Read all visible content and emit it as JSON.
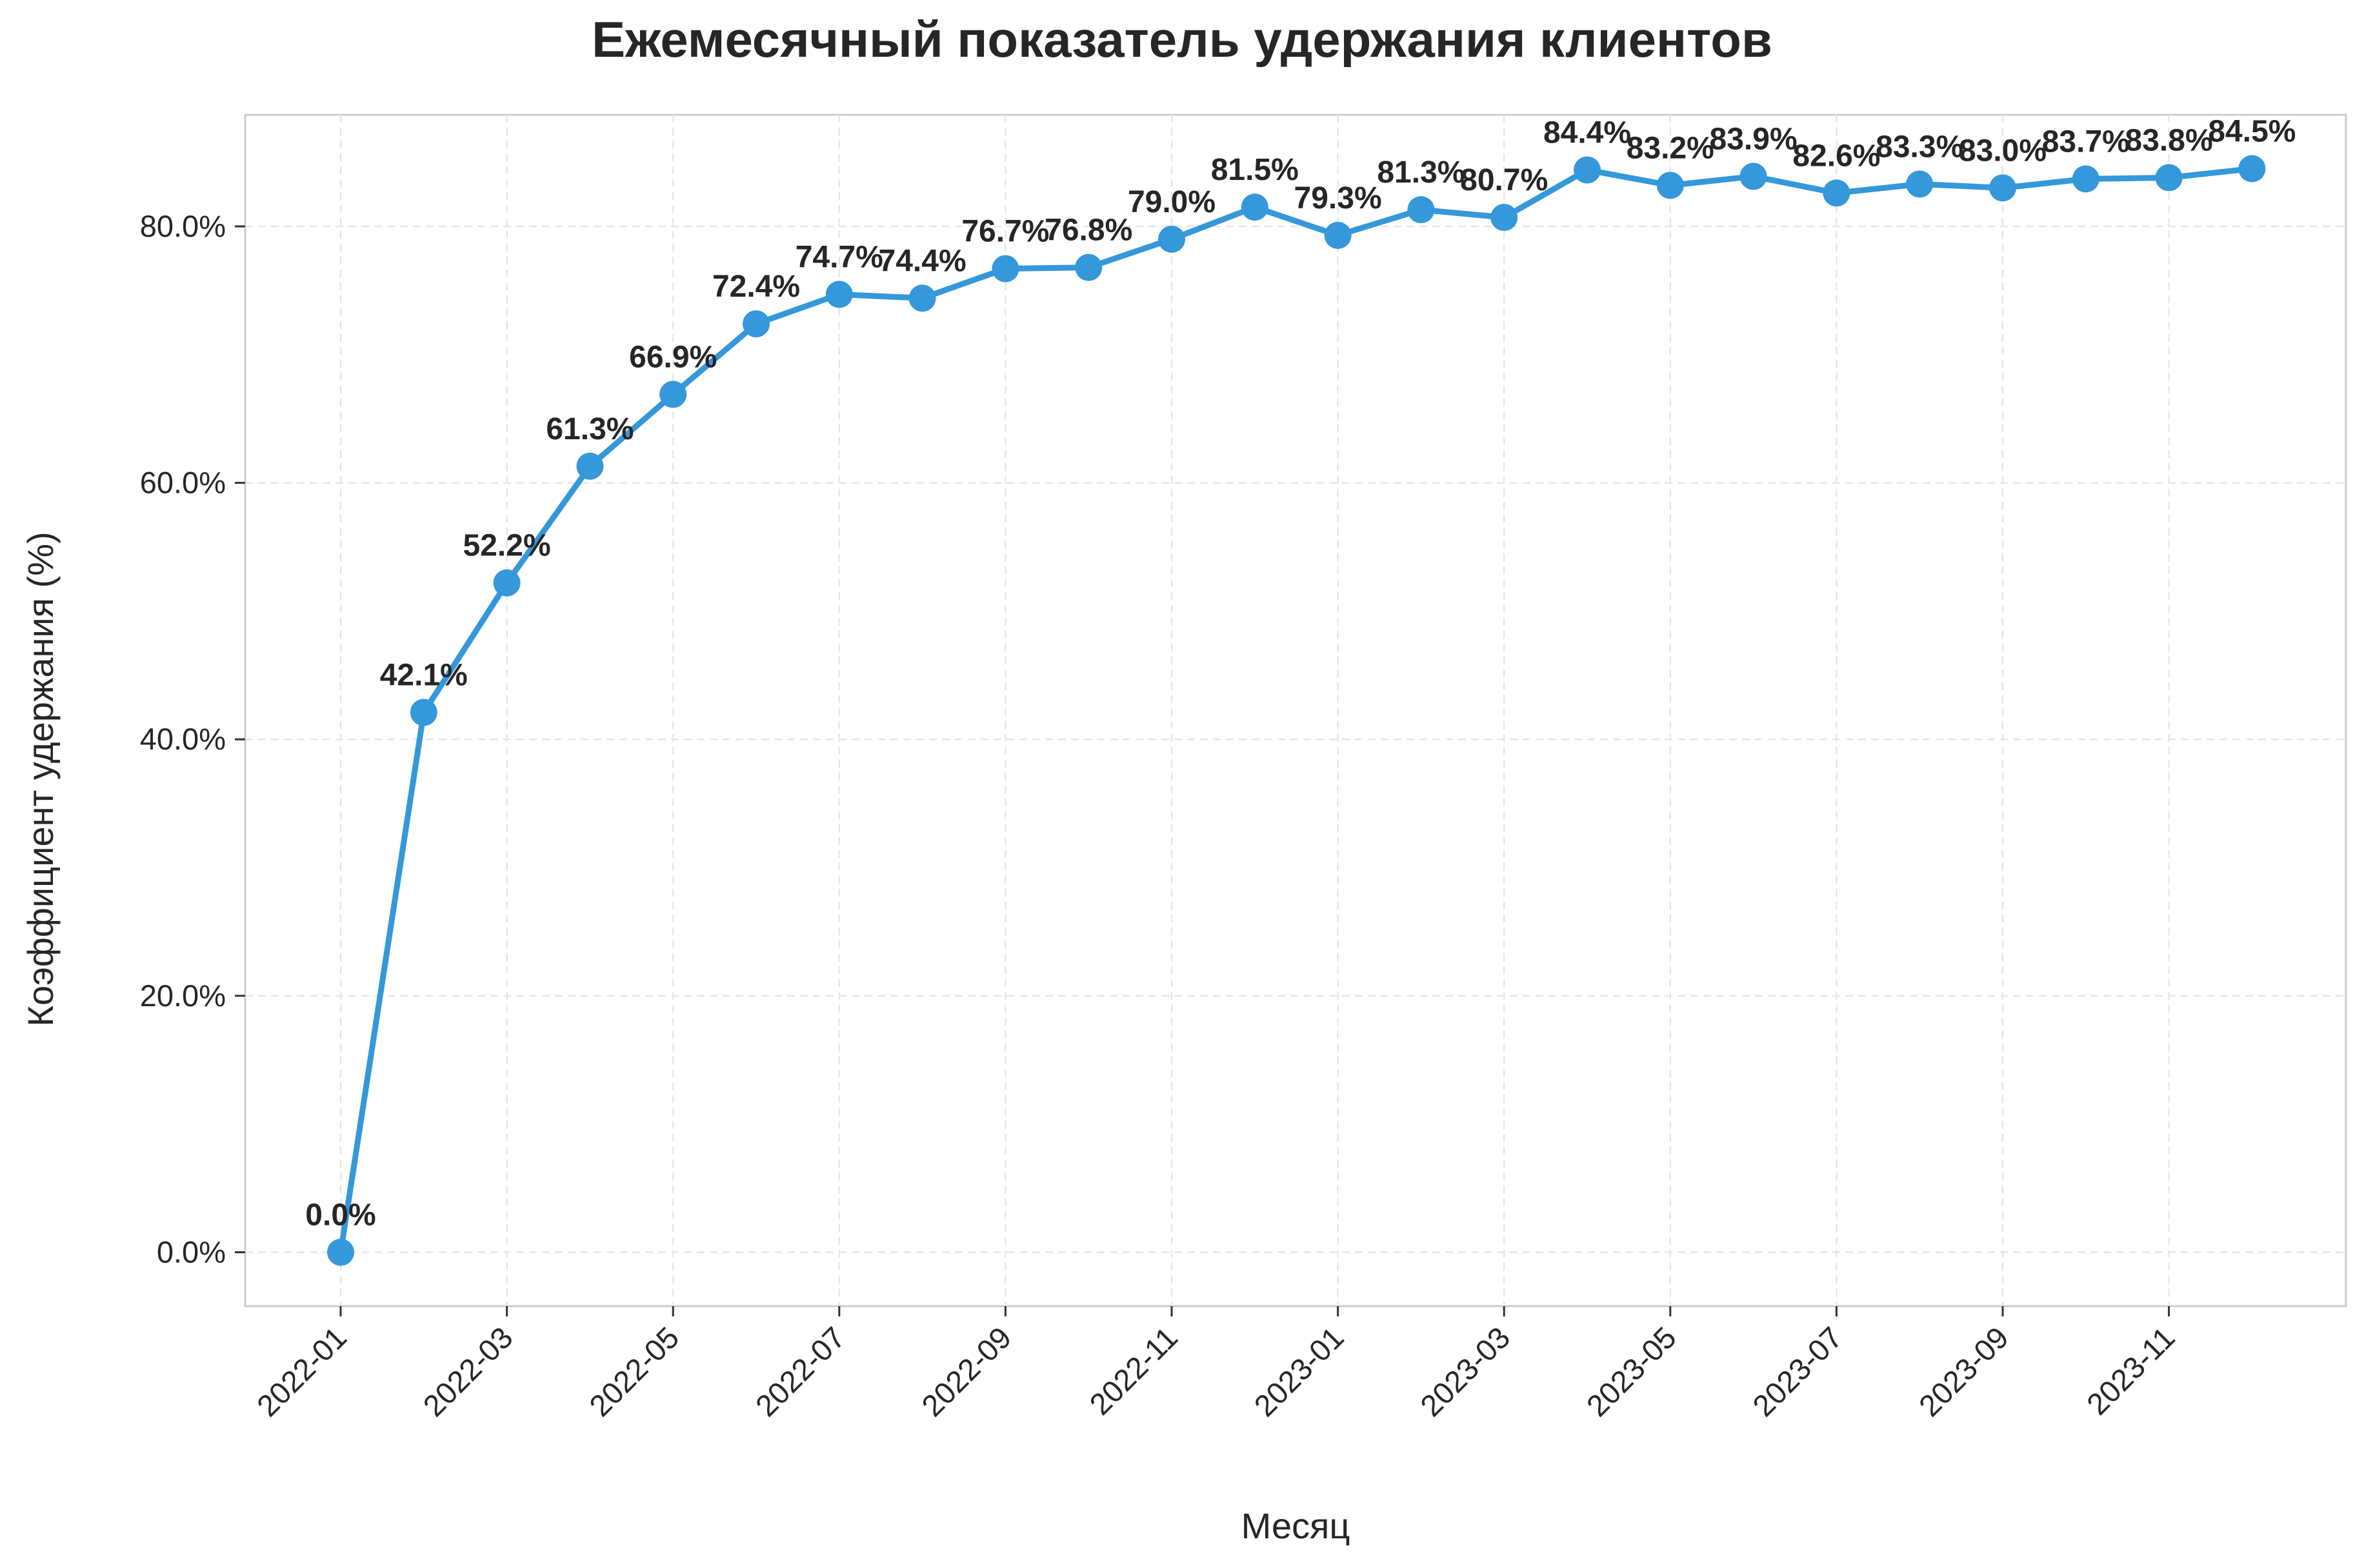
{
  "chart_data": {
    "type": "line",
    "title": "Ежемесячный показатель удержания клиентов",
    "xlabel": "Месяц",
    "ylabel": "Коэффициент удержания (%)",
    "x": [
      "2022-01",
      "2022-02",
      "2022-03",
      "2022-04",
      "2022-05",
      "2022-06",
      "2022-07",
      "2022-08",
      "2022-09",
      "2022-10",
      "2022-11",
      "2022-12",
      "2023-01",
      "2023-02",
      "2023-03",
      "2023-04",
      "2023-05",
      "2023-06",
      "2023-07",
      "2023-08",
      "2023-09",
      "2023-10",
      "2023-11",
      "2023-12"
    ],
    "series": [
      {
        "values": [
          0.0,
          42.1,
          52.2,
          61.3,
          66.9,
          72.4,
          74.7,
          74.4,
          76.7,
          76.8,
          79.0,
          81.5,
          79.3,
          81.3,
          80.7,
          84.4,
          83.2,
          83.9,
          82.6,
          83.3,
          83.0,
          83.7,
          83.8,
          84.5
        ],
        "labels": [
          "0.0%",
          "42.1%",
          "52.2%",
          "61.3%",
          "66.9%",
          "72.4%",
          "74.7%",
          "74.4%",
          "76.7%",
          "76.8%",
          "79.0%",
          "81.5%",
          "79.3%",
          "81.3%",
          "80.7%",
          "84.4%",
          "83.2%",
          "83.9%",
          "82.6%",
          "83.3%",
          "83.0%",
          "83.7%",
          "83.8%",
          "84.5%"
        ],
        "color": "#3498db"
      }
    ],
    "x_ticks": [
      "2022-01",
      "2022-03",
      "2022-05",
      "2022-07",
      "2022-09",
      "2022-11",
      "2023-01",
      "2023-03",
      "2023-05",
      "2023-07",
      "2023-09",
      "2023-11"
    ],
    "y_ticks": [
      0,
      20,
      40,
      60,
      80
    ],
    "y_tick_labels": [
      "0.0%",
      "20.0%",
      "40.0%",
      "60.0%",
      "80.0%"
    ],
    "ylim": [
      -4.2,
      88.7
    ],
    "grid": true,
    "legend": "none"
  }
}
